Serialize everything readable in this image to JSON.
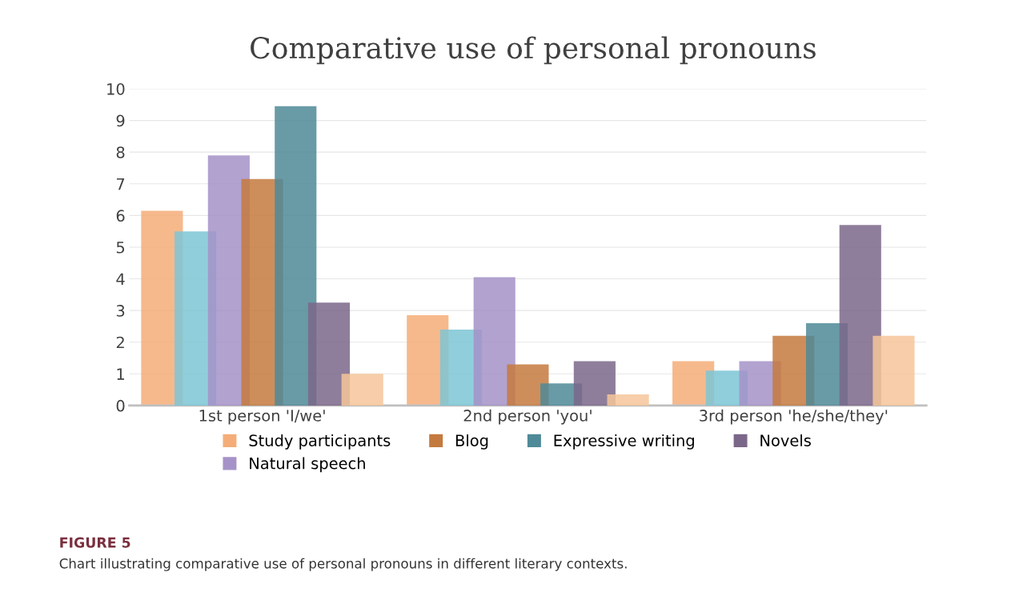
{
  "chart_data": {
    "type": "bar",
    "title": "Comparative use of personal pronouns",
    "categories": [
      "1st person 'I/we'",
      "2nd person 'you'",
      "3rd person 'he/she/they'"
    ],
    "series": [
      {
        "name": "Study participants",
        "color": "#f4ad78",
        "values": [
          6.15,
          2.85,
          1.4
        ]
      },
      {
        "color": "#7cc6d6",
        "values": [
          5.5,
          2.4,
          1.1
        ]
      },
      {
        "name": "Natural speech",
        "color": "#a592c8",
        "values": [
          7.9,
          4.05,
          1.4
        ]
      },
      {
        "name": "Blog",
        "color": "#c47a3e",
        "values": [
          7.15,
          1.3,
          2.2
        ]
      },
      {
        "name": "Expressive writing",
        "color": "#4f8a98",
        "values": [
          9.45,
          0.7,
          2.6
        ]
      },
      {
        "name": "Novels",
        "color": "#7b6789",
        "values": [
          3.25,
          1.4,
          5.7
        ]
      },
      {
        "color": "#f6c59a",
        "values": [
          1.0,
          0.35,
          2.2
        ]
      }
    ],
    "ylim": [
      0,
      10
    ],
    "yticks": [
      0,
      1,
      2,
      3,
      4,
      5,
      6,
      7,
      8,
      9,
      10
    ],
    "grid": "y",
    "legend": "bottom",
    "annotations": [
      "FIGURE 5",
      "Chart illustrating comparative use of personal pronouns in different literary contexts."
    ]
  }
}
